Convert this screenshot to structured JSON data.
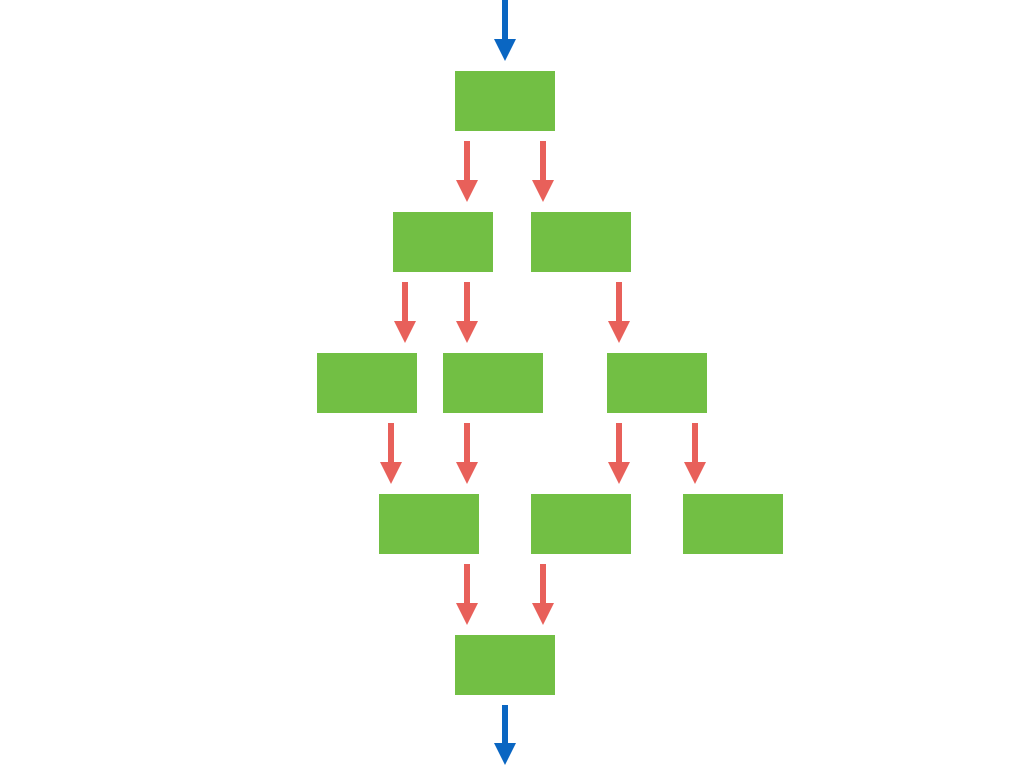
{
  "diagram": {
    "type": "flow-graph",
    "colors": {
      "background": "#ffffff",
      "node_fill": "#72bf44",
      "edge_arrow": "#e8605a",
      "io_arrow": "#0a66c2"
    },
    "nodes": [
      {
        "id": "n1",
        "level": 0,
        "label": ""
      },
      {
        "id": "n2",
        "level": 1,
        "label": ""
      },
      {
        "id": "n3",
        "level": 1,
        "label": ""
      },
      {
        "id": "n4",
        "level": 2,
        "label": ""
      },
      {
        "id": "n5",
        "level": 2,
        "label": ""
      },
      {
        "id": "n6",
        "level": 2,
        "label": ""
      },
      {
        "id": "n7",
        "level": 3,
        "label": ""
      },
      {
        "id": "n8",
        "level": 3,
        "label": ""
      },
      {
        "id": "n9",
        "level": 3,
        "label": ""
      },
      {
        "id": "n10",
        "level": 4,
        "label": ""
      }
    ],
    "edges": [
      {
        "from": "n1",
        "to": "n2"
      },
      {
        "from": "n1",
        "to": "n3"
      },
      {
        "from": "n2",
        "to": "n4"
      },
      {
        "from": "n2",
        "to": "n5"
      },
      {
        "from": "n3",
        "to": "n6"
      },
      {
        "from": "n4",
        "to": "n7"
      },
      {
        "from": "n5",
        "to": "n7"
      },
      {
        "from": "n6",
        "to": "n8"
      },
      {
        "from": "n6",
        "to": "n9"
      },
      {
        "from": "n7",
        "to": "n10"
      },
      {
        "from": "n8",
        "to": "n10"
      }
    ],
    "entry": {
      "to": "n1"
    },
    "exit": {
      "from": "n10"
    }
  }
}
